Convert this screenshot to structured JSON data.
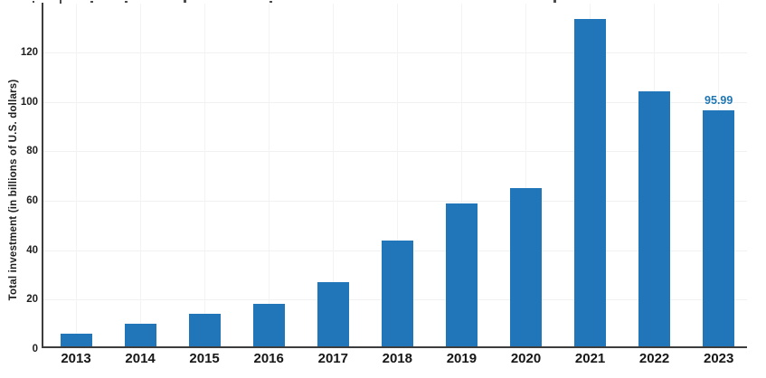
{
  "chart_data": {
    "type": "bar",
    "categories": [
      "2013",
      "2014",
      "2015",
      "2016",
      "2017",
      "2018",
      "2019",
      "2020",
      "2021",
      "2022",
      "2023"
    ],
    "values": [
      5.5,
      9.7,
      13.6,
      17.5,
      26.5,
      43.2,
      58.4,
      64.4,
      133,
      103.7,
      95.99
    ],
    "title": "",
    "xlabel": "",
    "ylabel": "Total investment (in billions of U.S. dollars)",
    "yticks": [
      0,
      20,
      40,
      60,
      80,
      100,
      120
    ],
    "ylim": [
      0,
      140
    ],
    "grid": "horizontal and vertical, light gray",
    "legend": "none",
    "bar_color": "#2176ba",
    "axis_color": "#3d3d3d",
    "gridline_color": "#f1f1f1",
    "tick_label_color": "#1f1f1f",
    "data_labels": [
      {
        "category": "2023",
        "text": "95.99",
        "color": "#1f77b4"
      }
    ]
  }
}
